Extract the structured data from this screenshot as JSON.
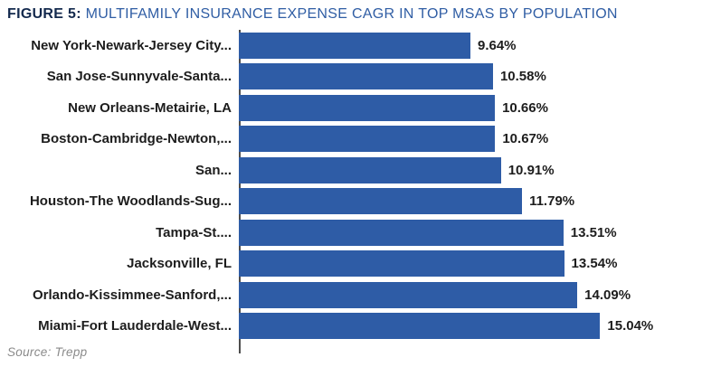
{
  "title": {
    "prefix": "FIGURE 5:",
    "text": " MULTIFAMILY INSURANCE EXPENSE CAGR IN TOP MSAS BY POPULATION"
  },
  "source": "Source: Trepp",
  "colors": {
    "bar": "#2e5ca6",
    "title_prefix": "#13294d",
    "title_text": "#2f5da4",
    "label_text": "#1d1d1d",
    "axis_line": "#4d4d4d",
    "source_text": "#8a8a8a"
  },
  "chart_data": {
    "type": "bar",
    "orientation": "horizontal",
    "title": "FIGURE 5: MULTIFAMILY INSURANCE EXPENSE CAGR IN TOP MSAS BY POPULATION",
    "xlabel": "",
    "ylabel": "",
    "xlim": [
      0,
      18
    ],
    "grid": false,
    "legend": false,
    "categories": [
      "New York-Newark-Jersey City...",
      "San Jose-Sunnyvale-Santa...",
      "New Orleans-Metairie, LA",
      "Boston-Cambridge-Newton,...",
      "San...",
      "Houston-The Woodlands-Sug...",
      "Tampa-St....",
      "Jacksonville, FL",
      "Orlando-Kissimmee-Sanford,...",
      "Miami-Fort Lauderdale-West..."
    ],
    "values": [
      9.64,
      10.58,
      10.66,
      10.67,
      10.91,
      11.79,
      13.51,
      13.54,
      14.09,
      15.04
    ],
    "value_labels": [
      "9.64%",
      "10.58%",
      "10.66%",
      "10.67%",
      "10.91%",
      "11.79%",
      "13.51%",
      "13.54%",
      "14.09%",
      "15.04%"
    ]
  }
}
